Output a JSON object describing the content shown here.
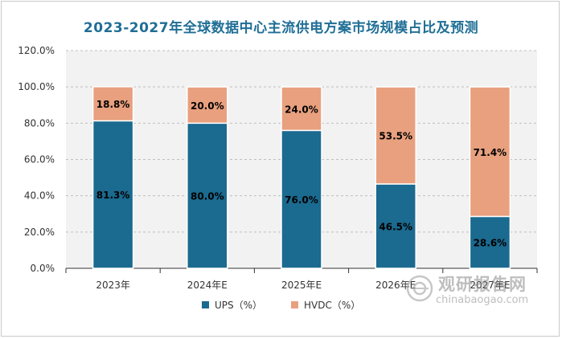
{
  "chart_data": {
    "type": "bar",
    "stacked": true,
    "title": "2023-2027年全球数据中心主流供电方案市场规模占比及预测",
    "categories": [
      "2023年",
      "2024年E",
      "2025年E",
      "2026年E",
      "2027年E"
    ],
    "series": [
      {
        "name": "UPS（%）",
        "color": "#1b6a8f",
        "values": [
          81.3,
          80.0,
          76.0,
          46.5,
          28.6
        ],
        "labels": [
          "81.3%",
          "80.0%",
          "76.0%",
          "46.5%",
          "28.6%"
        ]
      },
      {
        "name": "HVDC（%）",
        "color": "#e8a07f",
        "values": [
          18.8,
          20.0,
          24.0,
          53.5,
          71.4
        ],
        "labels": [
          "18.8%",
          "20.0%",
          "24.0%",
          "53.5%",
          "71.4%"
        ]
      }
    ],
    "ylim": [
      0,
      120
    ],
    "yticks": [
      "0.0%",
      "20.0%",
      "40.0%",
      "60.0%",
      "80.0%",
      "100.0%",
      "120.0%"
    ],
    "ytick_values": [
      0,
      20,
      40,
      60,
      80,
      100,
      120
    ],
    "grid": "horizontal-dashed",
    "legend": "bottom"
  },
  "watermark": {
    "cn": "观研报告网",
    "en": "chinabaogao.com"
  }
}
